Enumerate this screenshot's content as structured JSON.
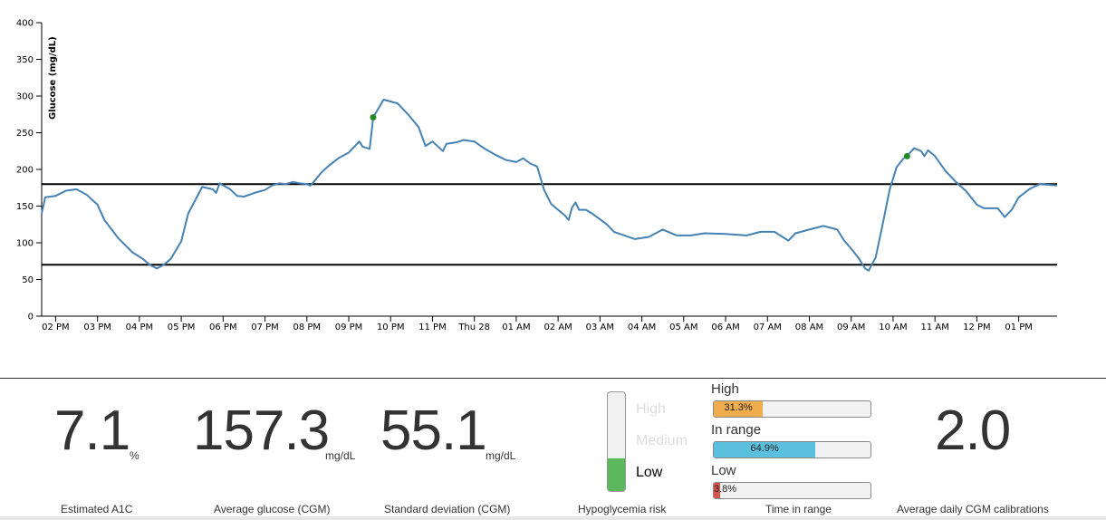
{
  "chart_data": {
    "type": "line",
    "ylabel": "Glucose (mg/dL)",
    "ylim": [
      0,
      400
    ],
    "yticks": [
      0,
      50,
      100,
      150,
      200,
      250,
      300,
      350,
      400
    ],
    "xlim": [
      "2024-03-27 13:40",
      "2024-03-28 13:55"
    ],
    "xticks": [
      {
        "time": "2024-03-27 14:00",
        "label": "02 PM"
      },
      {
        "time": "2024-03-27 15:00",
        "label": "03 PM"
      },
      {
        "time": "2024-03-27 16:00",
        "label": "04 PM"
      },
      {
        "time": "2024-03-27 17:00",
        "label": "05 PM"
      },
      {
        "time": "2024-03-27 18:00",
        "label": "06 PM"
      },
      {
        "time": "2024-03-27 19:00",
        "label": "07 PM"
      },
      {
        "time": "2024-03-27 20:00",
        "label": "08 PM"
      },
      {
        "time": "2024-03-27 21:00",
        "label": "09 PM"
      },
      {
        "time": "2024-03-27 22:00",
        "label": "10 PM"
      },
      {
        "time": "2024-03-27 23:00",
        "label": "11 PM"
      },
      {
        "time": "2024-03-28 00:00",
        "label": "Thu 28"
      },
      {
        "time": "2024-03-28 01:00",
        "label": "01 AM"
      },
      {
        "time": "2024-03-28 02:00",
        "label": "02 AM"
      },
      {
        "time": "2024-03-28 03:00",
        "label": "03 AM"
      },
      {
        "time": "2024-03-28 04:00",
        "label": "04 AM"
      },
      {
        "time": "2024-03-28 05:00",
        "label": "05 AM"
      },
      {
        "time": "2024-03-28 06:00",
        "label": "06 AM"
      },
      {
        "time": "2024-03-28 07:00",
        "label": "07 AM"
      },
      {
        "time": "2024-03-28 08:00",
        "label": "08 AM"
      },
      {
        "time": "2024-03-28 09:00",
        "label": "09 AM"
      },
      {
        "time": "2024-03-28 10:00",
        "label": "10 AM"
      },
      {
        "time": "2024-03-28 11:00",
        "label": "11 AM"
      },
      {
        "time": "2024-03-28 12:00",
        "label": "12 PM"
      },
      {
        "time": "2024-03-28 13:00",
        "label": "01 PM"
      }
    ],
    "reference_lines": [
      180,
      70
    ],
    "grid": false,
    "series": [
      {
        "color": "#4682b4",
        "points": [
          [
            "2024-03-27 13:40",
            140
          ],
          [
            "2024-03-27 13:45",
            162
          ],
          [
            "2024-03-27 14:00",
            164
          ],
          [
            "2024-03-27 14:15",
            171
          ],
          [
            "2024-03-27 14:30",
            173
          ],
          [
            "2024-03-27 14:45",
            165
          ],
          [
            "2024-03-27 15:00",
            152
          ],
          [
            "2024-03-27 15:10",
            131
          ],
          [
            "2024-03-27 15:30",
            106
          ],
          [
            "2024-03-27 15:50",
            87
          ],
          [
            "2024-03-27 16:05",
            78
          ],
          [
            "2024-03-27 16:15",
            70
          ],
          [
            "2024-03-27 16:25",
            65
          ],
          [
            "2024-03-27 16:35",
            70
          ],
          [
            "2024-03-27 16:45",
            78
          ],
          [
            "2024-03-27 17:00",
            102
          ],
          [
            "2024-03-27 17:10",
            140
          ],
          [
            "2024-03-27 17:30",
            176
          ],
          [
            "2024-03-27 17:45",
            173
          ],
          [
            "2024-03-27 17:50",
            168
          ],
          [
            "2024-03-27 17:55",
            181
          ],
          [
            "2024-03-27 18:10",
            173
          ],
          [
            "2024-03-27 18:20",
            164
          ],
          [
            "2024-03-27 18:30",
            163
          ],
          [
            "2024-03-27 18:45",
            168
          ],
          [
            "2024-03-27 19:00",
            172
          ],
          [
            "2024-03-27 19:10",
            178
          ],
          [
            "2024-03-27 19:20",
            181
          ],
          [
            "2024-03-27 19:30",
            180
          ],
          [
            "2024-03-27 19:40",
            183
          ],
          [
            "2024-03-27 19:50",
            181
          ],
          [
            "2024-03-27 20:00",
            180
          ],
          [
            "2024-03-27 20:05",
            178
          ],
          [
            "2024-03-27 20:10",
            183
          ],
          [
            "2024-03-27 20:20",
            195
          ],
          [
            "2024-03-27 20:30",
            204
          ],
          [
            "2024-03-27 20:45",
            215
          ],
          [
            "2024-03-27 21:00",
            223
          ],
          [
            "2024-03-27 21:15",
            238
          ],
          [
            "2024-03-27 21:20",
            231
          ],
          [
            "2024-03-27 21:30",
            228
          ],
          [
            "2024-03-27 21:35",
            271
          ],
          [
            "2024-03-27 21:50",
            295
          ],
          [
            "2024-03-27 22:10",
            290
          ],
          [
            "2024-03-27 22:25",
            275
          ],
          [
            "2024-03-27 22:40",
            258
          ],
          [
            "2024-03-27 22:50",
            232
          ],
          [
            "2024-03-27 23:00",
            238
          ],
          [
            "2024-03-27 23:15",
            225
          ],
          [
            "2024-03-27 23:20",
            235
          ],
          [
            "2024-03-27 23:35",
            237
          ],
          [
            "2024-03-27 23:45",
            240
          ],
          [
            "2024-03-28 00:00",
            238
          ],
          [
            "2024-03-28 00:15",
            228
          ],
          [
            "2024-03-28 00:30",
            220
          ],
          [
            "2024-03-28 00:45",
            213
          ],
          [
            "2024-03-28 01:00",
            210
          ],
          [
            "2024-03-28 01:10",
            215
          ],
          [
            "2024-03-28 01:20",
            208
          ],
          [
            "2024-03-28 01:30",
            204
          ],
          [
            "2024-03-28 01:40",
            172
          ],
          [
            "2024-03-28 01:50",
            153
          ],
          [
            "2024-03-28 02:00",
            145
          ],
          [
            "2024-03-28 02:10",
            137
          ],
          [
            "2024-03-28 02:15",
            131
          ],
          [
            "2024-03-28 02:20",
            148
          ],
          [
            "2024-03-28 02:25",
            155
          ],
          [
            "2024-03-28 02:30",
            145
          ],
          [
            "2024-03-28 02:40",
            145
          ],
          [
            "2024-03-28 02:50",
            139
          ],
          [
            "2024-03-28 03:00",
            132
          ],
          [
            "2024-03-28 03:10",
            125
          ],
          [
            "2024-03-28 03:20",
            115
          ],
          [
            "2024-03-28 03:35",
            110
          ],
          [
            "2024-03-28 03:50",
            105
          ],
          [
            "2024-03-28 04:10",
            108
          ],
          [
            "2024-03-28 04:30",
            118
          ],
          [
            "2024-03-28 04:50",
            110
          ],
          [
            "2024-03-28 05:10",
            110
          ],
          [
            "2024-03-28 05:30",
            113
          ],
          [
            "2024-03-28 06:00",
            112
          ],
          [
            "2024-03-28 06:30",
            110
          ],
          [
            "2024-03-28 06:50",
            115
          ],
          [
            "2024-03-28 07:10",
            115
          ],
          [
            "2024-03-28 07:30",
            103
          ],
          [
            "2024-03-28 07:40",
            113
          ],
          [
            "2024-03-28 08:00",
            118
          ],
          [
            "2024-03-28 08:20",
            123
          ],
          [
            "2024-03-28 08:40",
            118
          ],
          [
            "2024-03-28 08:50",
            103
          ],
          [
            "2024-03-28 09:00",
            92
          ],
          [
            "2024-03-28 09:10",
            80
          ],
          [
            "2024-03-28 09:20",
            65
          ],
          [
            "2024-03-28 09:25",
            62
          ],
          [
            "2024-03-28 09:35",
            80
          ],
          [
            "2024-03-28 09:45",
            125
          ],
          [
            "2024-03-28 09:55",
            172
          ],
          [
            "2024-03-28 10:05",
            203
          ],
          [
            "2024-03-28 10:15",
            215
          ],
          [
            "2024-03-28 10:20",
            218
          ],
          [
            "2024-03-28 10:30",
            229
          ],
          [
            "2024-03-28 10:40",
            225
          ],
          [
            "2024-03-28 10:45",
            218
          ],
          [
            "2024-03-28 10:50",
            226
          ],
          [
            "2024-03-28 11:00",
            218
          ],
          [
            "2024-03-28 11:15",
            198
          ],
          [
            "2024-03-28 11:30",
            183
          ],
          [
            "2024-03-28 11:45",
            170
          ],
          [
            "2024-03-28 12:00",
            152
          ],
          [
            "2024-03-28 12:10",
            147
          ],
          [
            "2024-03-28 12:30",
            147
          ],
          [
            "2024-03-28 12:40",
            135
          ],
          [
            "2024-03-28 12:50",
            145
          ],
          [
            "2024-03-28 13:00",
            162
          ],
          [
            "2024-03-28 13:15",
            173
          ],
          [
            "2024-03-28 13:30",
            180
          ],
          [
            "2024-03-28 13:55",
            178
          ]
        ]
      }
    ],
    "calibrations": {
      "color": "#228b22",
      "points": [
        [
          "2024-03-27 21:35",
          271
        ],
        [
          "2024-03-28 10:20",
          218
        ]
      ]
    }
  },
  "stats": {
    "a1c": {
      "value": "7.1",
      "unit": "%",
      "caption": "Estimated A1C"
    },
    "avg_glucose": {
      "value": "157.3",
      "unit": "mg/dL",
      "caption": "Average glucose (CGM)"
    },
    "std_dev": {
      "value": "55.1",
      "unit": "mg/dL",
      "caption": "Standard deviation (CGM)"
    },
    "calibrations": {
      "value": "2.0",
      "caption": "Average daily CGM calibrations"
    }
  },
  "hypo_risk": {
    "caption": "Hypoglycemia risk",
    "levels": [
      "High",
      "Medium",
      "Low"
    ],
    "active": "Low",
    "fill_fraction": 0.33,
    "fill_color": "#5cb85c"
  },
  "time_in_range": {
    "caption": "Time in range",
    "items": [
      {
        "label": "High",
        "text": "31.3%",
        "value": 31.3,
        "color": "#f0ad4e"
      },
      {
        "label": "In range",
        "text": "64.9%",
        "value": 64.9,
        "color": "#5bc0de"
      },
      {
        "label": "Low",
        "text": "3.8%",
        "value": 3.8,
        "color": "#d9534f"
      }
    ]
  }
}
